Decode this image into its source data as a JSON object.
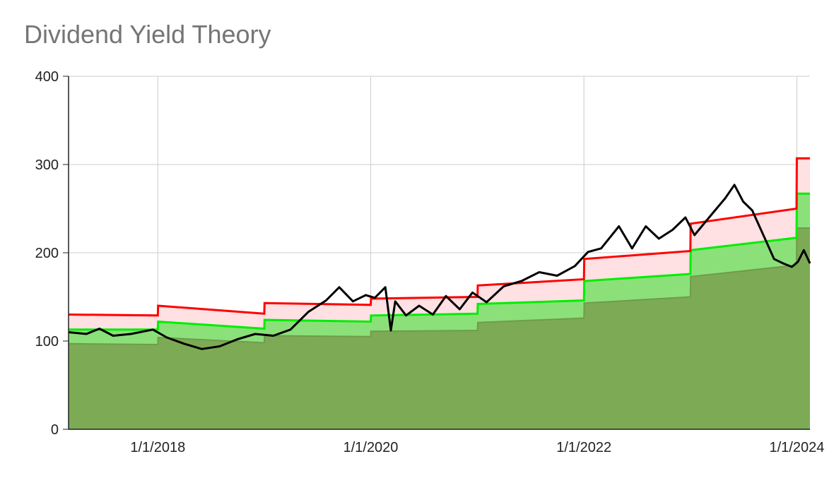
{
  "chart_data": {
    "type": "area",
    "title": "Dividend Yield Theory",
    "xlabel": "",
    "ylabel": "",
    "ylim": [
      0,
      400
    ],
    "xlim": [
      "2017-03-01",
      "2024-02-15"
    ],
    "y_ticks": [
      "0",
      "100",
      "200",
      "300",
      "400"
    ],
    "x_ticks": [
      {
        "date": "2018-01-01",
        "label": "1/1/2018"
      },
      {
        "date": "2020-01-01",
        "label": "1/1/2020"
      },
      {
        "date": "2022-01-01",
        "label": "1/1/2022"
      },
      {
        "date": "2024-01-01",
        "label": "1/1/2024"
      }
    ],
    "grid": true,
    "legend": "none",
    "colors": {
      "overvalued_line": "#ff0000",
      "overvalued_fill": "#ffe0e3",
      "undervalued_line": "#00ee00",
      "undervalued_fill": "#8be07a",
      "base_fill": "#7dab55",
      "base_line": "#6f9c4b",
      "price_line": "#000000",
      "grid": "#cccccc"
    },
    "series": [
      {
        "role": "overvalued",
        "points": [
          [
            "2017-03-01",
            130
          ],
          [
            "2018-01-01",
            129
          ],
          [
            "2018-01-02",
            140
          ],
          [
            "2019-01-01",
            131
          ],
          [
            "2019-01-02",
            143
          ],
          [
            "2020-01-01",
            141
          ],
          [
            "2020-01-02",
            148
          ],
          [
            "2021-01-01",
            150
          ],
          [
            "2021-01-02",
            163
          ],
          [
            "2022-01-01",
            170
          ],
          [
            "2022-01-02",
            193
          ],
          [
            "2023-01-01",
            202
          ],
          [
            "2023-01-02",
            233
          ],
          [
            "2023-12-31",
            250
          ],
          [
            "2024-01-01",
            307
          ],
          [
            "2024-02-15",
            307
          ]
        ]
      },
      {
        "role": "undervalued",
        "points": [
          [
            "2017-03-01",
            113
          ],
          [
            "2018-01-01",
            113
          ],
          [
            "2018-01-02",
            122
          ],
          [
            "2019-01-01",
            114
          ],
          [
            "2019-01-02",
            124
          ],
          [
            "2020-01-01",
            122
          ],
          [
            "2020-01-02",
            129
          ],
          [
            "2021-01-01",
            131
          ],
          [
            "2021-01-02",
            142
          ],
          [
            "2022-01-01",
            146
          ],
          [
            "2022-01-02",
            168
          ],
          [
            "2023-01-01",
            176
          ],
          [
            "2023-01-02",
            203
          ],
          [
            "2023-12-31",
            217
          ],
          [
            "2024-01-01",
            267
          ],
          [
            "2024-02-15",
            267
          ]
        ]
      },
      {
        "role": "base",
        "points": [
          [
            "2017-03-01",
            97
          ],
          [
            "2018-01-01",
            96
          ],
          [
            "2018-01-02",
            104
          ],
          [
            "2019-01-01",
            98
          ],
          [
            "2019-01-02",
            106
          ],
          [
            "2020-01-01",
            105
          ],
          [
            "2020-01-02",
            111
          ],
          [
            "2021-01-01",
            112
          ],
          [
            "2021-01-02",
            121
          ],
          [
            "2022-01-01",
            126
          ],
          [
            "2022-01-02",
            143
          ],
          [
            "2023-01-01",
            150
          ],
          [
            "2023-01-02",
            173
          ],
          [
            "2023-12-31",
            186
          ],
          [
            "2024-01-01",
            228
          ],
          [
            "2024-02-15",
            228
          ]
        ]
      },
      {
        "role": "price",
        "points": [
          [
            "2017-03-01",
            110
          ],
          [
            "2017-05-01",
            108
          ],
          [
            "2017-06-15",
            114
          ],
          [
            "2017-08-01",
            106
          ],
          [
            "2017-10-01",
            108
          ],
          [
            "2017-12-15",
            113
          ],
          [
            "2018-02-01",
            104
          ],
          [
            "2018-04-01",
            97
          ],
          [
            "2018-06-01",
            91
          ],
          [
            "2018-08-01",
            94
          ],
          [
            "2018-10-01",
            102
          ],
          [
            "2018-12-01",
            108
          ],
          [
            "2019-02-01",
            106
          ],
          [
            "2019-04-01",
            113
          ],
          [
            "2019-06-01",
            133
          ],
          [
            "2019-08-01",
            146
          ],
          [
            "2019-09-15",
            161
          ],
          [
            "2019-11-01",
            145
          ],
          [
            "2019-12-15",
            152
          ],
          [
            "2020-01-15",
            149
          ],
          [
            "2020-02-20",
            161
          ],
          [
            "2020-03-10",
            112
          ],
          [
            "2020-03-25",
            145
          ],
          [
            "2020-05-01",
            129
          ],
          [
            "2020-06-15",
            140
          ],
          [
            "2020-08-01",
            130
          ],
          [
            "2020-09-15",
            151
          ],
          [
            "2020-11-01",
            136
          ],
          [
            "2020-12-15",
            155
          ],
          [
            "2021-02-01",
            144
          ],
          [
            "2021-04-01",
            162
          ],
          [
            "2021-06-01",
            168
          ],
          [
            "2021-08-01",
            178
          ],
          [
            "2021-10-01",
            174
          ],
          [
            "2021-12-01",
            185
          ],
          [
            "2022-01-15",
            201
          ],
          [
            "2022-03-01",
            205
          ],
          [
            "2022-05-01",
            230
          ],
          [
            "2022-06-15",
            205
          ],
          [
            "2022-08-01",
            230
          ],
          [
            "2022-09-15",
            216
          ],
          [
            "2022-11-01",
            226
          ],
          [
            "2022-12-15",
            240
          ],
          [
            "2023-01-15",
            220
          ],
          [
            "2023-03-01",
            238
          ],
          [
            "2023-05-01",
            262
          ],
          [
            "2023-06-01",
            277
          ],
          [
            "2023-07-01",
            258
          ],
          [
            "2023-08-01",
            248
          ],
          [
            "2023-09-15",
            215
          ],
          [
            "2023-10-15",
            193
          ],
          [
            "2023-11-15",
            188
          ],
          [
            "2023-12-15",
            184
          ],
          [
            "2024-01-05",
            190
          ],
          [
            "2024-01-25",
            203
          ],
          [
            "2024-02-15",
            188
          ]
        ]
      }
    ]
  }
}
